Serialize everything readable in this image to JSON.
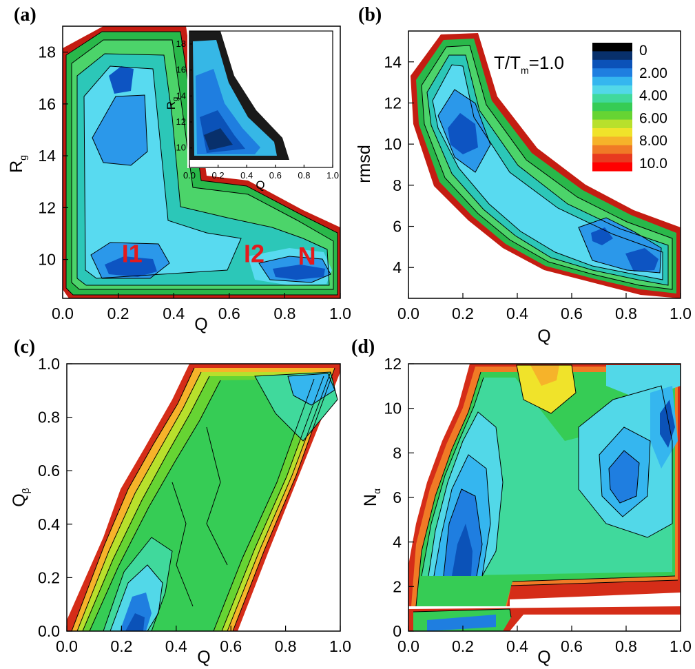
{
  "figure": {
    "colorscale": [
      "#000000",
      "#08306b",
      "#0b52b8",
      "#1f7ee0",
      "#35b6ef",
      "#52d8e8",
      "#40d99c",
      "#36cc55",
      "#66d433",
      "#b8e02c",
      "#f0e32a",
      "#f6b32a",
      "#f07a26",
      "#e83a1f",
      "#ff0000"
    ],
    "colorbar": {
      "title_main": "T/T",
      "title_sub": "m",
      "title_tail": "=1.0",
      "labels": [
        "0",
        "2.00",
        "4.00",
        "6.00",
        "8.00",
        "10.0"
      ],
      "range": [
        0,
        10
      ]
    }
  },
  "chart_data": [
    {
      "type": "heatmap",
      "panel": "(a)",
      "xlabel": "Q",
      "ylabel_main": "R",
      "ylabel_sub": "g",
      "xlim": [
        0.0,
        1.0
      ],
      "ylim": [
        8.5,
        19.0
      ],
      "xticks": [
        "0.0",
        "0.2",
        "0.4",
        "0.6",
        "0.8",
        "1.0"
      ],
      "yticks": [
        "10",
        "12",
        "14",
        "16",
        "18"
      ],
      "basins": [
        {
          "label": "I1",
          "x": 0.25,
          "y": 9.9
        },
        {
          "label": "I2",
          "x": 0.69,
          "y": 9.9
        },
        {
          "label": "N",
          "x": 0.88,
          "y": 9.8
        }
      ],
      "minima": [
        {
          "x": 0.25,
          "y": 9.6,
          "value": 1.0
        },
        {
          "x": 0.91,
          "y": 9.5,
          "value": 1.0
        },
        {
          "x": 0.22,
          "y": 17.2,
          "value": 2.0
        },
        {
          "x": 0.19,
          "y": 14.3,
          "value": 2.3
        }
      ],
      "inset": {
        "xlabel": "Q",
        "ylabel_main": "R",
        "ylabel_sub": "g",
        "xlim": [
          0.0,
          1.0
        ],
        "ylim": [
          8.5,
          19.0
        ],
        "xticks": [
          "0.0",
          "0.2",
          "0.4",
          "0.6",
          "0.8",
          "1.0"
        ],
        "yticks": [
          "10",
          "12",
          "14",
          "16",
          "18"
        ],
        "minima": [
          {
            "x": 0.26,
            "y": 10.0,
            "value": 0.8
          },
          {
            "x": 0.2,
            "y": 14.0,
            "value": 3.0
          }
        ]
      }
    },
    {
      "type": "heatmap",
      "panel": "(b)",
      "xlabel": "Q",
      "ylabel": "rmsd",
      "xlim": [
        0.0,
        1.0
      ],
      "ylim": [
        2.5,
        15.5
      ],
      "xticks": [
        "0.0",
        "0.2",
        "0.4",
        "0.6",
        "0.8",
        "1.0"
      ],
      "yticks": [
        "4",
        "6",
        "8",
        "10",
        "12",
        "14"
      ],
      "minima": [
        {
          "x": 0.24,
          "y": 10.3,
          "value": 1.2
        },
        {
          "x": 0.93,
          "y": 3.8,
          "value": 1.0
        },
        {
          "x": 0.72,
          "y": 5.3,
          "value": 2.0
        },
        {
          "x": 0.23,
          "y": 13.8,
          "value": 2.5
        }
      ]
    },
    {
      "type": "heatmap",
      "panel": "(c)",
      "xlabel": "Q",
      "ylabel_main": "Q",
      "ylabel_sub": "β",
      "xlim": [
        0.0,
        1.0
      ],
      "ylim": [
        0.0,
        1.0
      ],
      "xticks": [
        "0.0",
        "0.2",
        "0.4",
        "0.6",
        "0.8",
        "1.0"
      ],
      "yticks": [
        "0.0",
        "0.2",
        "0.4",
        "0.6",
        "0.8",
        "1.0"
      ],
      "minima": [
        {
          "x": 0.2,
          "y": 0.04,
          "value": 1.0
        },
        {
          "x": 0.92,
          "y": 0.98,
          "value": 2.0
        }
      ]
    },
    {
      "type": "heatmap",
      "panel": "(d)",
      "xlabel": "Q",
      "ylabel_main": "N",
      "ylabel_sub": "α",
      "xlim": [
        0.0,
        1.0
      ],
      "ylim": [
        0.0,
        12.0
      ],
      "xticks": [
        "0.0",
        "0.2",
        "0.4",
        "0.6",
        "0.8",
        "1.0"
      ],
      "yticks": [
        "0",
        "2",
        "4",
        "6",
        "8",
        "10",
        "12"
      ],
      "minima": [
        {
          "x": 0.2,
          "y": 4.0,
          "value": 1.0
        },
        {
          "x": 0.74,
          "y": 7.0,
          "value": 2.0
        },
        {
          "x": 0.93,
          "y": 10.5,
          "value": 2.0
        },
        {
          "x": 0.5,
          "y": 11.8,
          "value": 8.5
        }
      ]
    }
  ]
}
